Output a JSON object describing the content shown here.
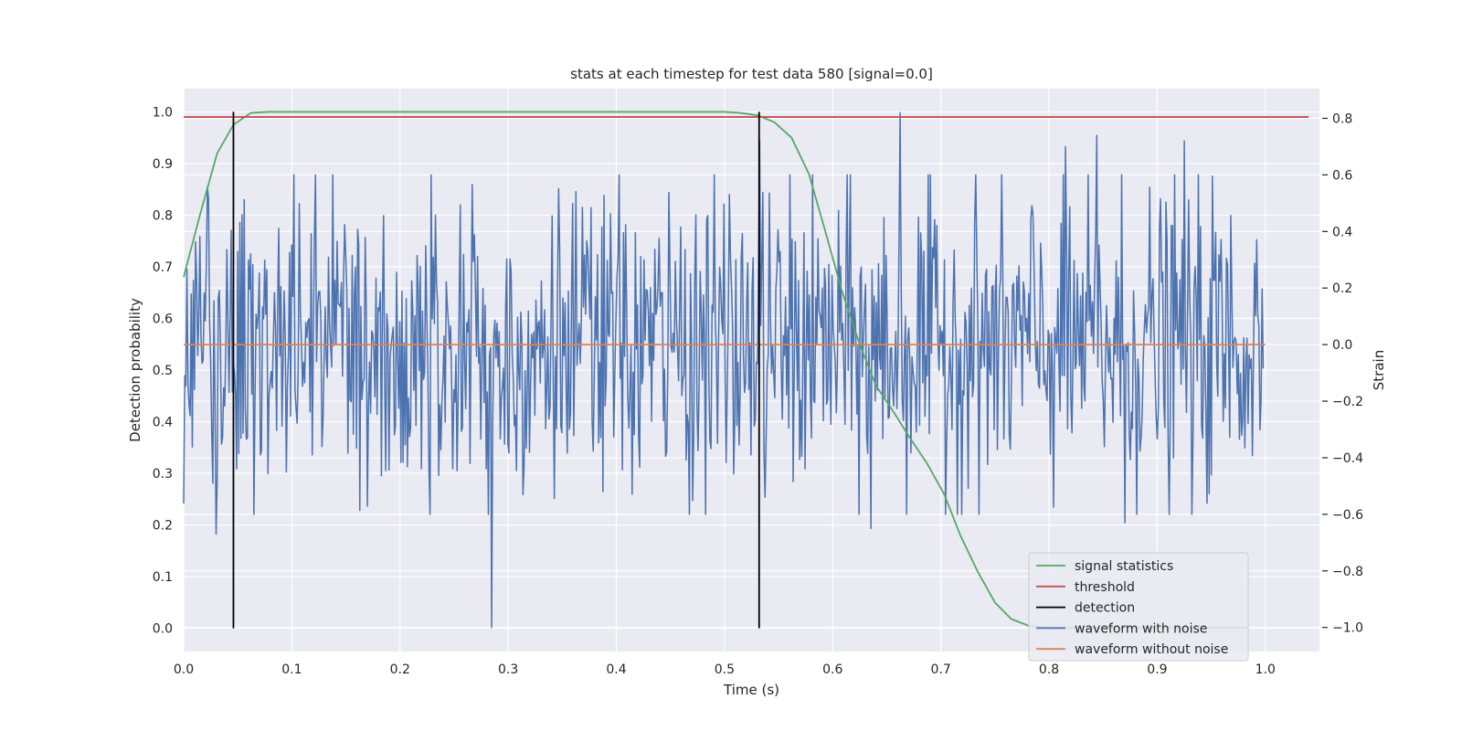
{
  "chart_data": {
    "type": "line",
    "title": "stats at each timestep for test data 580 [signal=0.0]",
    "xlabel": "Time (s)",
    "ylabel_left": "Detection probability",
    "ylabel_right": "Strain",
    "xlim": [
      0.0,
      1.05
    ],
    "ylim_left": [
      -0.045,
      1.045
    ],
    "ylim_right": [
      -1.085,
      0.905
    ],
    "x_ticks": [
      0.0,
      0.1,
      0.2,
      0.3,
      0.4,
      0.5,
      0.6,
      0.7,
      0.8,
      0.9,
      1.0
    ],
    "x_tick_labels": [
      "0.0",
      "0.1",
      "0.2",
      "0.3",
      "0.4",
      "0.5",
      "0.6",
      "0.7",
      "0.8",
      "0.9",
      "1.0"
    ],
    "y_left_ticks": [
      0.0,
      0.1,
      0.2,
      0.3,
      0.4,
      0.5,
      0.6,
      0.7,
      0.8,
      0.9,
      1.0
    ],
    "y_left_tick_labels": [
      "0.0",
      "0.1",
      "0.2",
      "0.3",
      "0.4",
      "0.5",
      "0.6",
      "0.7",
      "0.8",
      "0.9",
      "1.0"
    ],
    "y_right_ticks": [
      -1.0,
      -0.8,
      -0.6,
      -0.4,
      -0.2,
      0.0,
      0.2,
      0.4,
      0.6,
      0.8
    ],
    "y_right_tick_labels": [
      "−1.0",
      "−0.8",
      "−0.6",
      "−0.4",
      "−0.2",
      "0.0",
      "0.2",
      "0.4",
      "0.6",
      "0.8"
    ],
    "grid": true,
    "legend_position": "lower-right",
    "series": [
      {
        "name": "signal statistics",
        "axis": "left",
        "color": "#55a868",
        "x": [
          0.0,
          0.015,
          0.031,
          0.046,
          0.062,
          0.078,
          0.093,
          0.109,
          0.2,
          0.3,
          0.4,
          0.5,
          0.515,
          0.531,
          0.546,
          0.562,
          0.578,
          0.593,
          0.609,
          0.625,
          0.64,
          0.656,
          0.671,
          0.687,
          0.703,
          0.718,
          0.734,
          0.75,
          0.765,
          0.781,
          0.796,
          0.812,
          0.828,
          0.843,
          0.859,
          0.875,
          0.89,
          0.906,
          0.921,
          0.937,
          0.953,
          0.968,
          0.984
        ],
        "y": [
          0.68,
          0.8,
          0.92,
          0.975,
          0.998,
          1.0,
          1.0,
          1.0,
          1.0,
          1.0,
          1.0,
          1.0,
          0.998,
          0.993,
          0.98,
          0.95,
          0.88,
          0.77,
          0.65,
          0.55,
          0.47,
          0.42,
          0.37,
          0.32,
          0.26,
          0.18,
          0.11,
          0.05,
          0.018,
          0.005,
          0.002,
          0.001,
          0.001,
          0.001,
          0.001,
          0.001,
          0.001,
          0.001,
          0.001,
          0.001,
          0.001,
          0.001,
          0.001
        ]
      },
      {
        "name": "threshold",
        "axis": "left",
        "color": "#c44e52",
        "x": [
          0.0,
          1.04
        ],
        "y": [
          0.99,
          0.99
        ]
      },
      {
        "name": "detection",
        "axis": "left",
        "color": "#000000",
        "x": [
          0.046,
          0.532
        ],
        "y_range": [
          0.0,
          1.0
        ]
      },
      {
        "name": "waveform with noise",
        "axis": "right",
        "color": "#4c72b0",
        "x_range": [
          0.0,
          0.998
        ],
        "num_points": 1000,
        "extremes": [
          {
            "x": 0.285,
            "y": -1.0
          },
          {
            "x": 0.662,
            "y": 0.82
          },
          {
            "x": 0.03,
            "y": -0.67
          },
          {
            "x": 0.532,
            "y": -0.68
          },
          {
            "x": 0.532,
            "y": 0.72
          },
          {
            "x": 0.844,
            "y": 0.74
          },
          {
            "x": 0.925,
            "y": 0.72
          },
          {
            "x": 0.815,
            "y": 0.7
          },
          {
            "x": 0.635,
            "y": -0.65
          },
          {
            "x": 0.87,
            "y": -0.63
          }
        ]
      },
      {
        "name": "waveform without noise",
        "axis": "right",
        "color": "#dd8452",
        "x": [
          0.0,
          1.0
        ],
        "y": [
          0.0,
          0.0
        ]
      }
    ]
  }
}
